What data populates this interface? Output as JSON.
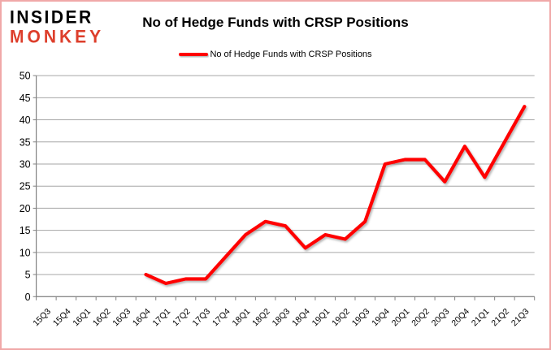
{
  "page": {
    "border_color": "#f0a8a8",
    "background_color": "#ffffff"
  },
  "logo": {
    "line1": "INSIDER",
    "line2": "MONKEY",
    "line1_color": "#000000",
    "line2_color": "#dd3e2b"
  },
  "title": "No of Hedge Funds with CRSP Positions",
  "legend": {
    "label": "No of Hedge Funds with CRSP Positions",
    "swatch_color": "#ff0000",
    "position": "top"
  },
  "chart_data": {
    "type": "line",
    "title": "No of Hedge Funds with CRSP Positions",
    "xlabel": "",
    "ylabel": "",
    "categories": [
      "15Q3",
      "15Q4",
      "16Q1",
      "16Q2",
      "16Q3",
      "16Q4",
      "17Q1",
      "17Q2",
      "17Q3",
      "17Q4",
      "18Q1",
      "18Q2",
      "18Q3",
      "18Q4",
      "19Q1",
      "19Q2",
      "19Q3",
      "19Q4",
      "20Q1",
      "20Q2",
      "20Q3",
      "20Q4",
      "21Q1",
      "21Q2",
      "21Q3"
    ],
    "series": [
      {
        "name": "No of Hedge Funds with CRSP Positions",
        "color": "#ff0000",
        "values": [
          null,
          null,
          null,
          null,
          null,
          5,
          3,
          4,
          4,
          9,
          14,
          17,
          16,
          11,
          14,
          13,
          17,
          30,
          31,
          31,
          26,
          34,
          27,
          35,
          43
        ]
      }
    ],
    "ylim": [
      0,
      50
    ],
    "ytick_step": 5,
    "ytick_labels": [
      "0",
      "5",
      "10",
      "15",
      "20",
      "25",
      "30",
      "35",
      "40",
      "45",
      "50"
    ],
    "grid": true,
    "gridline_color": "#a6a6a6",
    "axis_color": "#808080",
    "tick_label_color": "#000000",
    "x_label_rotation": -45,
    "legend_position": "top"
  }
}
